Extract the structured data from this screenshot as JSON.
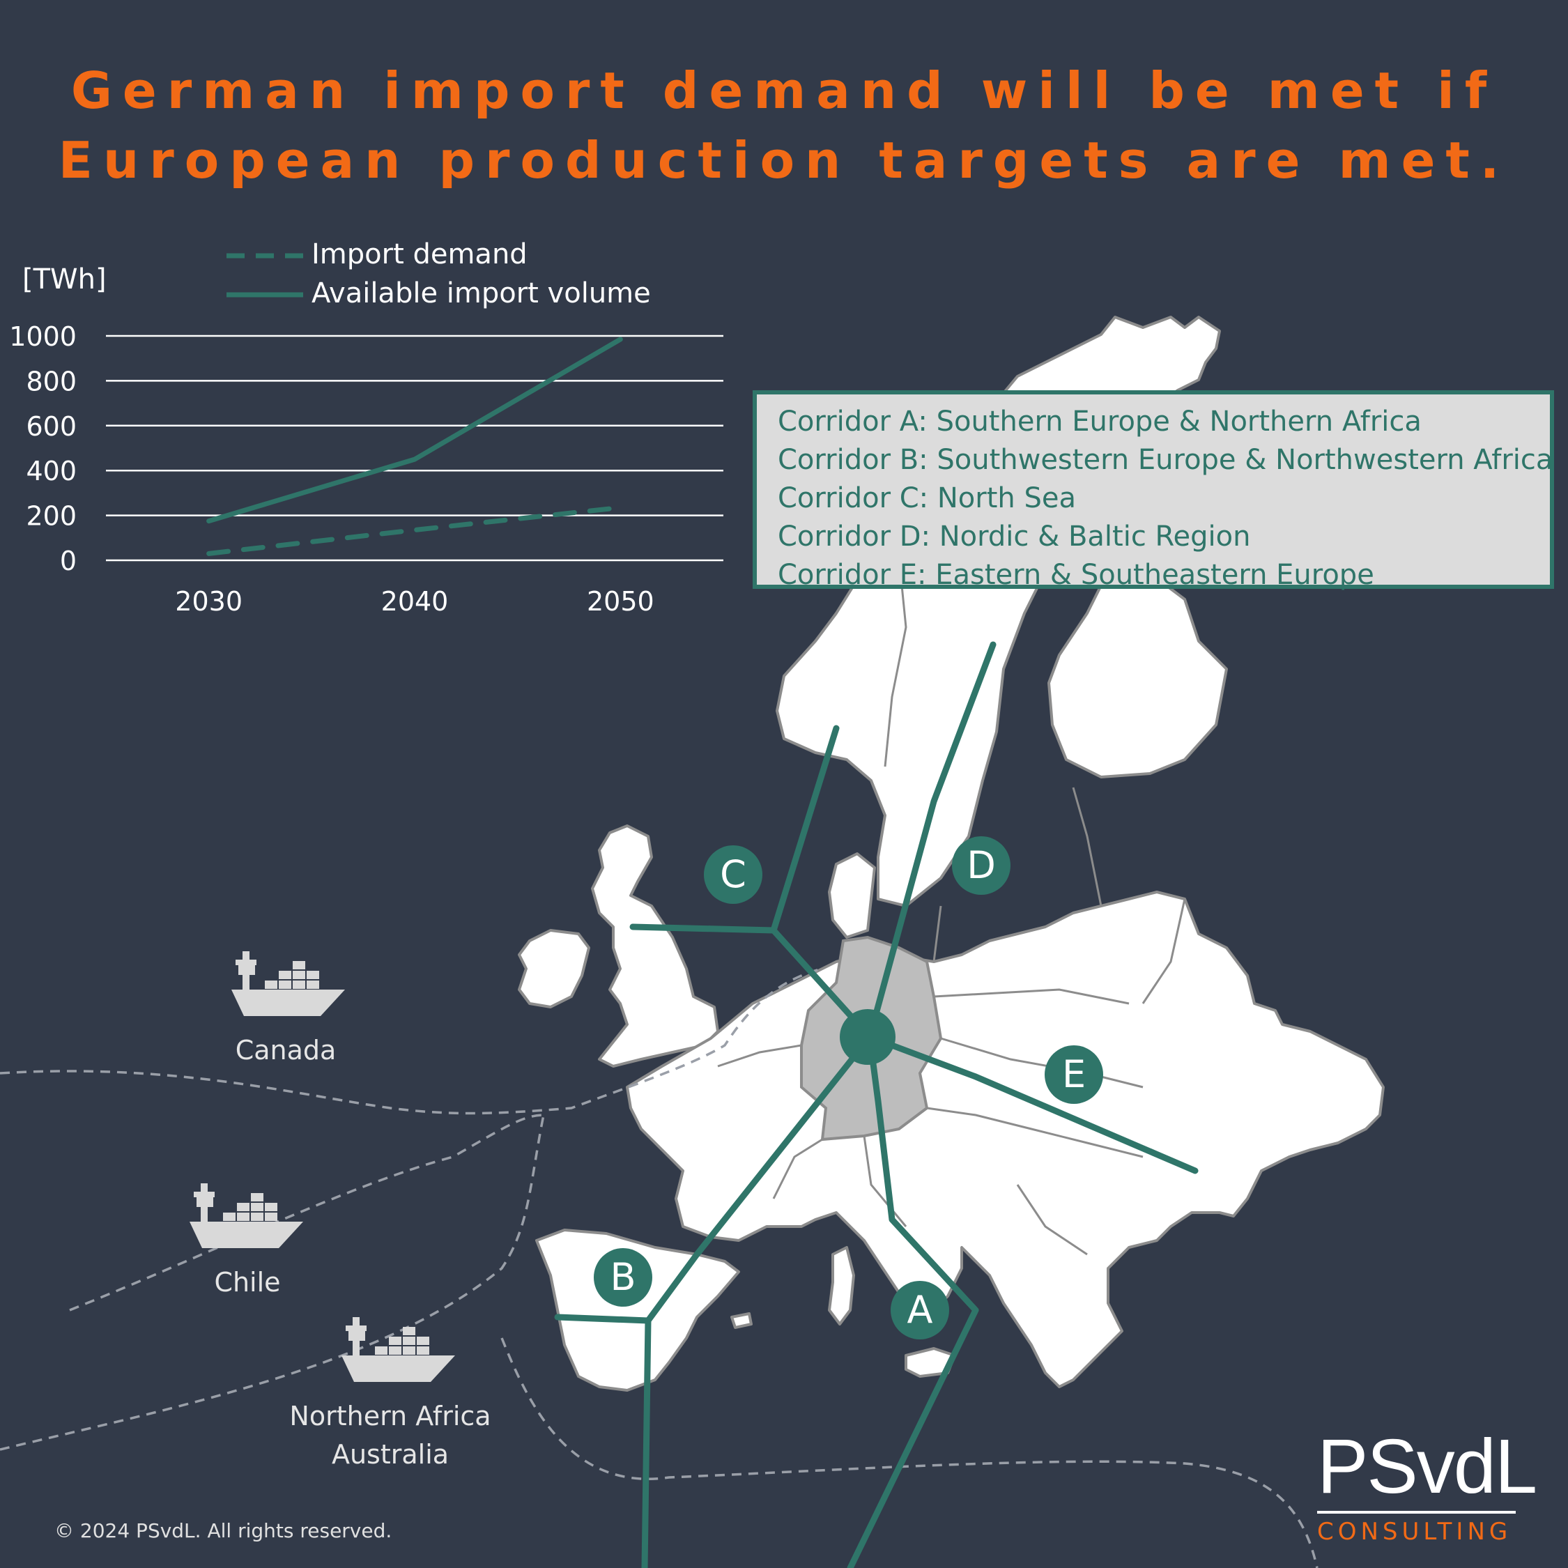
{
  "title": {
    "line1": "German import demand will be met if",
    "line2": "European production targets are met."
  },
  "chart_data": {
    "type": "line",
    "x": [
      2030,
      2040,
      2050
    ],
    "series": [
      {
        "name": "Import demand",
        "values": [
          30,
          135,
          235
        ],
        "style": "dashed"
      },
      {
        "name": "Available import volume",
        "values": [
          175,
          450,
          985
        ],
        "style": "solid"
      }
    ],
    "ylabel": "[TWh]",
    "ylim": [
      0,
      1000
    ],
    "y_ticks": [
      0,
      200,
      400,
      600,
      800,
      1000
    ],
    "x_ticks": [
      2030,
      2040,
      2050
    ],
    "grid": true,
    "legend_position": "top"
  },
  "colors": {
    "background": "#323a49",
    "accent": "#f26a16",
    "teal": "#2f7569",
    "map_land": "#ffffff",
    "germany": "#bdbdbd"
  },
  "corridors": [
    "Corridor A: Southern Europe & Northern Africa",
    "Corridor B: Southwestern Europe & Northwestern Africa",
    "Corridor C: North Sea",
    "Corridor D: Nordic & Baltic Region",
    "Corridor E: Eastern & Southeastern Europe"
  ],
  "map_markers": [
    "A",
    "B",
    "C",
    "D",
    "E"
  ],
  "destinations": [
    {
      "label": "Canada",
      "icon": "cargo-ship-icon"
    },
    {
      "label": "Chile",
      "icon": "cargo-ship-icon"
    },
    {
      "label": "Northern Africa",
      "label2": "Australia",
      "icon": "cargo-ship-icon"
    }
  ],
  "copyright": "© 2024 PSvdL. All rights reserved.",
  "logo": {
    "word": "PSvdL",
    "sub": "CONSULTING"
  }
}
